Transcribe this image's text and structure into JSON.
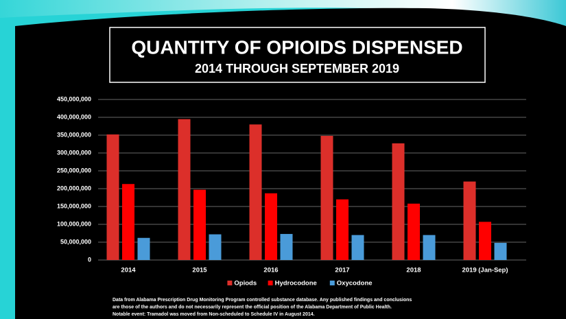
{
  "chart_data": {
    "type": "bar",
    "title": "QUANTITY OF OPIOIDS DISPENSED",
    "subtitle": "2014 THROUGH SEPTEMBER 2019",
    "categories": [
      "2014",
      "2015",
      "2016",
      "2017",
      "2018",
      "2019 (Jan-Sep)"
    ],
    "series": [
      {
        "name": "Opiods",
        "color": "#dc2f2a",
        "values": [
          352000000,
          395000000,
          380000000,
          348000000,
          327000000,
          220000000
        ]
      },
      {
        "name": "Hydrocodone",
        "color": "#ff0000",
        "values": [
          213000000,
          197000000,
          187000000,
          170000000,
          158000000,
          107000000
        ]
      },
      {
        "name": "Oxycodone",
        "color": "#4a9bd9",
        "values": [
          62000000,
          72000000,
          73000000,
          70000000,
          70000000,
          48000000
        ]
      }
    ],
    "ylim": [
      0,
      450000000
    ],
    "yticks": [
      0,
      {
        "value": 50000000,
        "label": "50,000,000"
      },
      {
        "value": 100000000,
        "label": "100,000,000"
      },
      {
        "value": 150000000,
        "label": "150,000,000"
      },
      {
        "value": 200000000,
        "label": "200,000,000"
      },
      {
        "value": 250000000,
        "label": "250,000,000"
      },
      {
        "value": 300000000,
        "label": "300,000,000"
      },
      {
        "value": 350000000,
        "label": "350,000,000"
      },
      {
        "value": 400000000,
        "label": "400,000,000"
      },
      {
        "value": 450000000,
        "label": "450,000,000"
      }
    ],
    "grid": true,
    "legend": "bottom",
    "footnote": [
      "Data from Alabama Prescription Drug Monitoring Program controlled substance database. Any published findings and conclusions",
      "are those of the authors and do not necessarily represent the official position of the Alabama Department of Public Health.",
      "Notable event: Tramadol was moved from Non-scheduled to Schedule IV in August 2014."
    ]
  }
}
